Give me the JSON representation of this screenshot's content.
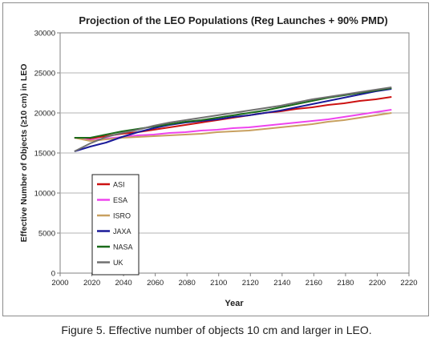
{
  "caption": "Figure 5. Effective number of objects 10 cm and larger in LEO.",
  "chart_data": {
    "type": "line",
    "title": "Projection of the LEO Populations (Reg Launches + 90% PMD)",
    "xlabel": "Year",
    "ylabel": "Effective Number of Objects (≥10 cm) in LEO",
    "xlim": [
      2000,
      2220
    ],
    "ylim": [
      0,
      30000
    ],
    "xticks": [
      2000,
      2020,
      2040,
      2060,
      2080,
      2100,
      2120,
      2140,
      2160,
      2180,
      2200,
      2220
    ],
    "yticks": [
      0,
      5000,
      10000,
      15000,
      20000,
      25000,
      30000
    ],
    "grid": "horizontal",
    "legend_position": "bottom-left",
    "x": [
      2009,
      2019,
      2029,
      2039,
      2049,
      2059,
      2069,
      2079,
      2089,
      2099,
      2109,
      2119,
      2129,
      2139,
      2149,
      2159,
      2169,
      2179,
      2189,
      2199,
      2209
    ],
    "series": [
      {
        "name": "ASI",
        "color": "#cc1111",
        "values": [
          16900,
          16800,
          17100,
          17400,
          17600,
          17900,
          18200,
          18500,
          18800,
          19100,
          19400,
          19700,
          20000,
          20200,
          20500,
          20700,
          21000,
          21200,
          21500,
          21700,
          22000
        ]
      },
      {
        "name": "ESA",
        "color": "#ee44ee",
        "values": [
          16900,
          16600,
          16800,
          17000,
          17200,
          17300,
          17500,
          17600,
          17800,
          17900,
          18100,
          18200,
          18400,
          18600,
          18800,
          19000,
          19200,
          19500,
          19800,
          20100,
          20400
        ]
      },
      {
        "name": "ISRO",
        "color": "#c8a060",
        "values": [
          16900,
          16500,
          16700,
          16900,
          17000,
          17100,
          17200,
          17300,
          17400,
          17600,
          17700,
          17800,
          18000,
          18200,
          18400,
          18600,
          18900,
          19100,
          19400,
          19700,
          20000
        ]
      },
      {
        "name": "JAXA",
        "color": "#1a1a99",
        "values": [
          15200,
          15800,
          16300,
          17000,
          17600,
          18100,
          18500,
          18800,
          19000,
          19200,
          19500,
          19700,
          20000,
          20300,
          20700,
          21100,
          21500,
          21900,
          22300,
          22700,
          23000
        ]
      },
      {
        "name": "NASA",
        "color": "#1a6b1a",
        "values": [
          16900,
          16900,
          17300,
          17700,
          18000,
          18300,
          18600,
          18900,
          19100,
          19400,
          19700,
          20000,
          20300,
          20700,
          21100,
          21500,
          21900,
          22200,
          22500,
          22800,
          23100
        ]
      },
      {
        "name": "UK",
        "color": "#707070",
        "values": [
          15200,
          16200,
          17000,
          17500,
          17900,
          18400,
          18800,
          19100,
          19400,
          19700,
          20000,
          20300,
          20600,
          20900,
          21300,
          21700,
          22000,
          22300,
          22600,
          22900,
          23200
        ]
      }
    ]
  }
}
